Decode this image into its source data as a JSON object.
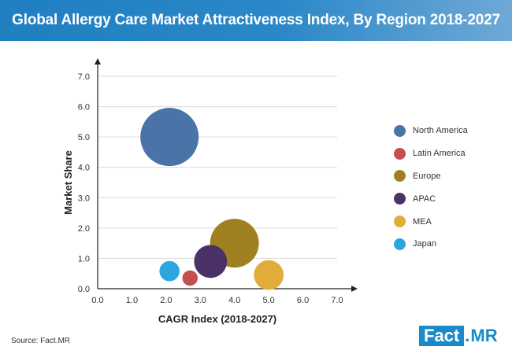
{
  "banner": {
    "title": "Global Allergy Care Market Attractiveness Index, By Region 2018-2027"
  },
  "chart_data": {
    "type": "scatter",
    "title": "Global Allergy Care Market Attractiveness Index, By Region 2018-2027",
    "xlabel": "CAGR Index (2018-2027)",
    "ylabel": "Market Share",
    "xlim": [
      0,
      7
    ],
    "ylim": [
      0,
      7
    ],
    "xticks": [
      "0.0",
      "1.0",
      "2.0",
      "3.0",
      "4.0",
      "5.0",
      "6.0",
      "7.0"
    ],
    "yticks": [
      "0.0",
      "1.0",
      "2.0",
      "3.0",
      "4.0",
      "5.0",
      "6.0",
      "7.0"
    ],
    "grid": "horizontal",
    "legend_position": "right",
    "series": [
      {
        "name": "North America",
        "x": 2.1,
        "y": 5.0,
        "size": 5.0,
        "color": "#4a74a8"
      },
      {
        "name": "Latin America",
        "x": 2.7,
        "y": 0.35,
        "size": 0.35,
        "color": "#c1504e"
      },
      {
        "name": "Europe",
        "x": 4.0,
        "y": 1.5,
        "size": 3.5,
        "color": "#a08020"
      },
      {
        "name": "APAC",
        "x": 3.3,
        "y": 0.9,
        "size": 1.6,
        "color": "#4a3268"
      },
      {
        "name": "MEA",
        "x": 5.0,
        "y": 0.45,
        "size": 1.3,
        "color": "#e0ac3a"
      },
      {
        "name": "Japan",
        "x": 2.1,
        "y": 0.58,
        "size": 0.6,
        "color": "#2ca6df"
      }
    ]
  },
  "footer": {
    "source": "Source: Fact.MR",
    "logo_main": "Fact",
    "logo_dot": ".",
    "logo_sub": "MR"
  }
}
